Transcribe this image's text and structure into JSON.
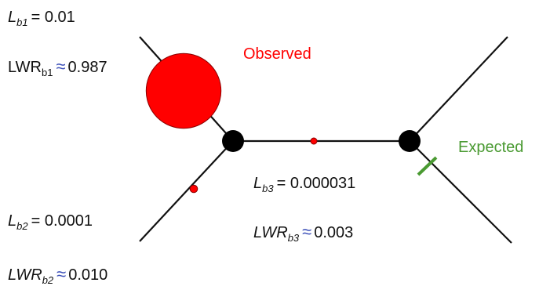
{
  "colors": {
    "observed": "#ff0000",
    "expected": "#4a9a32",
    "node": "#000000",
    "edge": "#111111",
    "approx": "#3b4fb8"
  },
  "annotations": {
    "observed": "Observed",
    "expected": "Expected"
  },
  "branches": {
    "b1": {
      "length_var": "L",
      "length_sub": "b1",
      "length_value": "= 0.01",
      "lwr_var": "LWR",
      "lwr_sub": "b1",
      "lwr_approx": "≈",
      "lwr_value": "0.987",
      "lwr": 0.987
    },
    "b2": {
      "length_var": "L",
      "length_sub": "b2",
      "length_value": "= 0.0001",
      "lwr_var": "LWR",
      "lwr_sub": "b2",
      "lwr_approx": "≈",
      "lwr_value": "0.010",
      "lwr": 0.01
    },
    "b3": {
      "length_var": "L",
      "length_sub": "b3",
      "length_value": "= 0.000031",
      "lwr_var": "LWR",
      "lwr_sub": "b3",
      "lwr_approx": "≈",
      "lwr_value": "0.003",
      "lwr": 0.003
    }
  }
}
